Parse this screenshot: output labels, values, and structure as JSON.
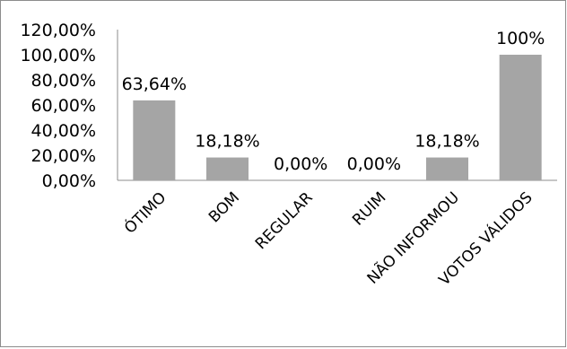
{
  "chart_data": {
    "type": "bar",
    "categories": [
      "ÓTIMO",
      "BOM",
      "REGULAR",
      "RUIM",
      "NÃO INFORMOU",
      "VOTOS VÁLIDOS"
    ],
    "values": [
      63.64,
      18.18,
      0.0,
      0.0,
      18.18,
      100
    ],
    "data_labels": [
      "63,64%",
      "18,18%",
      "0,00%",
      "0,00%",
      "18,18%",
      "100%"
    ],
    "y_ticks": [
      0,
      20,
      40,
      60,
      80,
      100,
      120
    ],
    "y_tick_labels": [
      "0,00%",
      "20,00%",
      "40,00%",
      "60,00%",
      "80,00%",
      "100,00%",
      "120,00%"
    ],
    "ylim": [
      0,
      120
    ],
    "grid": false,
    "legend": "none",
    "bar_color": "#a5a5a5",
    "title": "",
    "xlabel": "",
    "ylabel": ""
  }
}
